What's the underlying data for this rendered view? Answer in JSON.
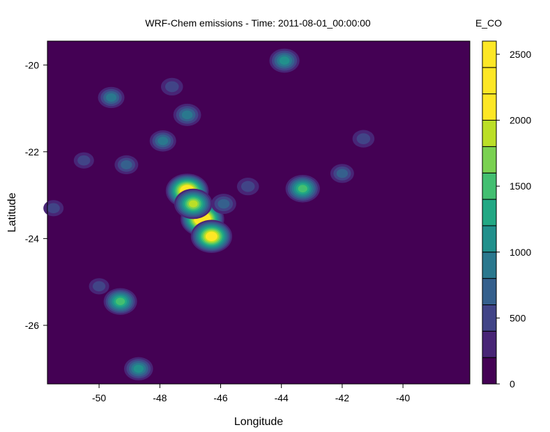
{
  "chart_data": {
    "type": "heatmap",
    "title": "WRF-Chem emissions - Time: 2011-08-01_00:00:00",
    "xlabel": "Longitude",
    "ylabel": "Latitude",
    "xlim": [
      -51.7,
      -37.8
    ],
    "ylim": [
      -27.35,
      -19.45
    ],
    "x_ticks": [
      -50,
      -48,
      -46,
      -44,
      -42,
      -40
    ],
    "y_ticks": [
      -20,
      -22,
      -24,
      -26
    ],
    "x_tick_labels": [
      "-50",
      "-48",
      "-46",
      "-44",
      "-42",
      "-40"
    ],
    "y_tick_labels": [
      "-20",
      "-22",
      "-24",
      "-26"
    ],
    "colorbar": {
      "label": "E_CO",
      "range": [
        0,
        2600
      ],
      "levels": [
        0,
        200,
        400,
        600,
        800,
        1000,
        1200,
        1400,
        1600,
        1800,
        2000,
        2200,
        2400,
        2600
      ],
      "tick_values": [
        0,
        500,
        1000,
        1500,
        2000,
        2500
      ],
      "tick_labels": [
        "0",
        "500",
        "1000",
        "1500",
        "2000",
        "2500"
      ],
      "colors": [
        "#440154",
        "#482576",
        "#414487",
        "#35608D",
        "#2A788E",
        "#21908C",
        "#22A884",
        "#43BF71",
        "#7AD151",
        "#BBDF27",
        "#FDE725",
        "#FDE725",
        "#FDE725"
      ]
    },
    "background_value": 0,
    "hotspots": [
      {
        "lon": -46.6,
        "lat": -23.55,
        "value": 2600
      },
      {
        "lon": -47.1,
        "lat": -22.9,
        "value": 2500
      },
      {
        "lon": -46.3,
        "lat": -23.95,
        "value": 2300
      },
      {
        "lon": -46.9,
        "lat": -23.2,
        "value": 1900
      },
      {
        "lon": -43.3,
        "lat": -22.85,
        "value": 1500
      },
      {
        "lon": -49.3,
        "lat": -25.45,
        "value": 1400
      },
      {
        "lon": -43.9,
        "lat": -19.9,
        "value": 1100
      },
      {
        "lon": -48.7,
        "lat": -27.0,
        "value": 1000
      },
      {
        "lon": -47.1,
        "lat": -21.15,
        "value": 900
      },
      {
        "lon": -49.6,
        "lat": -20.75,
        "value": 800
      },
      {
        "lon": -47.9,
        "lat": -21.75,
        "value": 800
      },
      {
        "lon": -42.0,
        "lat": -22.5,
        "value": 600
      },
      {
        "lon": -41.3,
        "lat": -21.7,
        "value": 500
      },
      {
        "lon": -49.1,
        "lat": -22.3,
        "value": 600
      },
      {
        "lon": -50.5,
        "lat": -22.2,
        "value": 400
      },
      {
        "lon": -51.5,
        "lat": -23.3,
        "value": 400
      },
      {
        "lon": -45.9,
        "lat": -23.2,
        "value": 700
      },
      {
        "lon": -45.1,
        "lat": -22.8,
        "value": 500
      },
      {
        "lon": -47.6,
        "lat": -20.5,
        "value": 500
      },
      {
        "lon": -50.0,
        "lat": -25.1,
        "value": 400
      }
    ]
  }
}
